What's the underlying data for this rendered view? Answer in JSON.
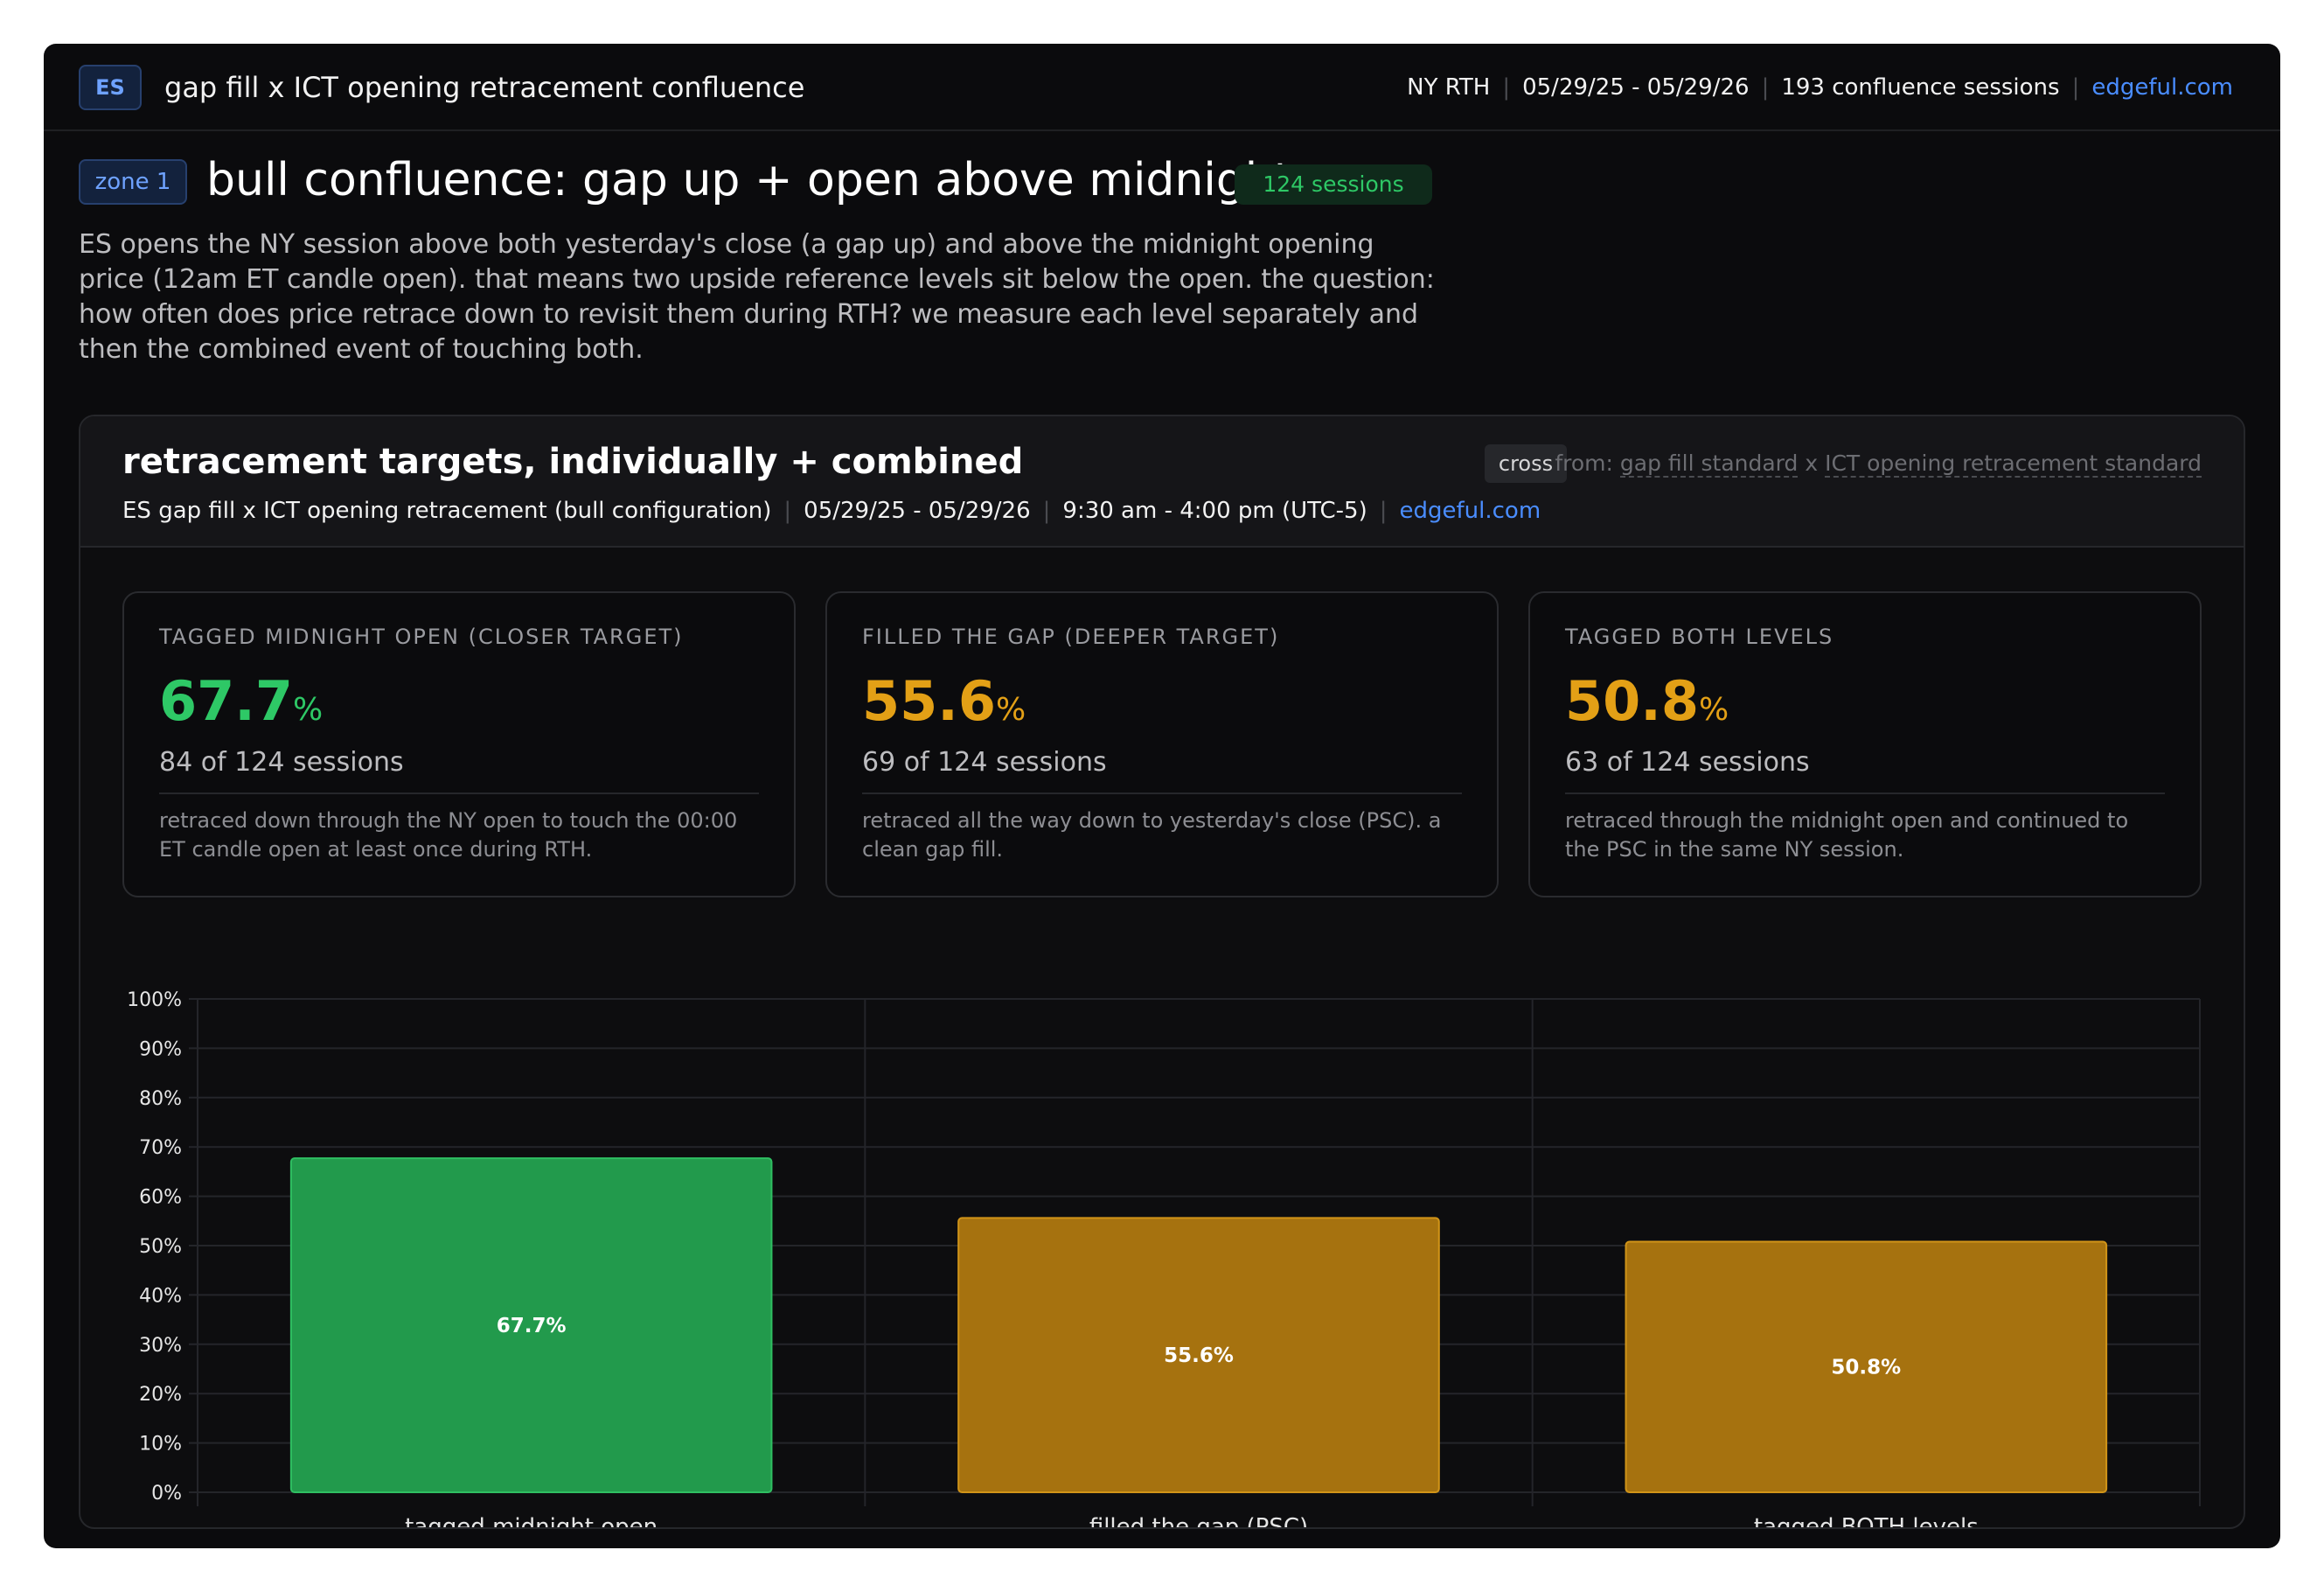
{
  "header": {
    "symbol": "ES",
    "title": "gap fill x ICT opening retracement confluence",
    "session": "NY RTH",
    "date_range": "05/29/25 - 05/29/26",
    "sessions": "193 confluence sessions",
    "link": "edgeful.com"
  },
  "zone": {
    "tag": "zone 1",
    "title": "bull confluence: gap up + open above midnight",
    "sessions_pill": "124 sessions",
    "description": "ES opens the NY session above both yesterday's close (a gap up) and above the midnight opening price (12am ET candle open). that means two upside reference levels sit below the open. the question: how often does price retrace down to revisit them during RTH? we measure each level separately and then the combined event of touching both."
  },
  "card": {
    "title": "retracement targets, individually + combined",
    "subtitle": "ES gap fill x ICT opening retracement (bull configuration)",
    "date_range": "05/29/25 - 05/29/26",
    "time_range": "9:30 am - 4:00 pm (UTC-5)",
    "link": "edgeful.com",
    "cross_chip": "cross",
    "from_label": "from:",
    "from_a": "gap fill standard",
    "from_x": "x",
    "from_b": "ICT opening retracement standard"
  },
  "stats": [
    {
      "label": "TAGGED MIDNIGHT OPEN (CLOSER TARGET)",
      "value": "67.7",
      "unit": "%",
      "count": "84 of 124 sessions",
      "note": "retraced down through the NY open to touch the 00:00 ET candle open at least once during RTH.",
      "color": "#2ec866"
    },
    {
      "label": "FILLED THE GAP (DEEPER TARGET)",
      "value": "55.6",
      "unit": "%",
      "count": "69 of 124 sessions",
      "note": "retraced all the way down to yesterday's close (PSC). a clean gap fill.",
      "color": "#e3a016"
    },
    {
      "label": "TAGGED BOTH LEVELS",
      "value": "50.8",
      "unit": "%",
      "count": "63 of 124 sessions",
      "note": "retraced through the midnight open and continued to the PSC in the same NY session.",
      "color": "#e3a016"
    }
  ],
  "chart_data": {
    "type": "bar",
    "categories": [
      "tagged midnight open",
      "filled the gap (PSC)",
      "tagged BOTH levels"
    ],
    "values": [
      67.7,
      55.6,
      50.8
    ],
    "value_labels": [
      "67.7%",
      "55.6%",
      "50.8%"
    ],
    "bar_colors": [
      "#229a4c",
      "#a6720f",
      "#a6720f"
    ],
    "bar_border_colors": [
      "#2fbf62",
      "#d19418",
      "#d19418"
    ],
    "ylim": [
      0,
      100
    ],
    "yticks": [
      0,
      10,
      20,
      30,
      40,
      50,
      60,
      70,
      80,
      90,
      100
    ],
    "ytick_labels": [
      "0%",
      "10%",
      "20%",
      "30%",
      "40%",
      "50%",
      "60%",
      "70%",
      "80%",
      "90%",
      "100%"
    ],
    "grid": true
  }
}
